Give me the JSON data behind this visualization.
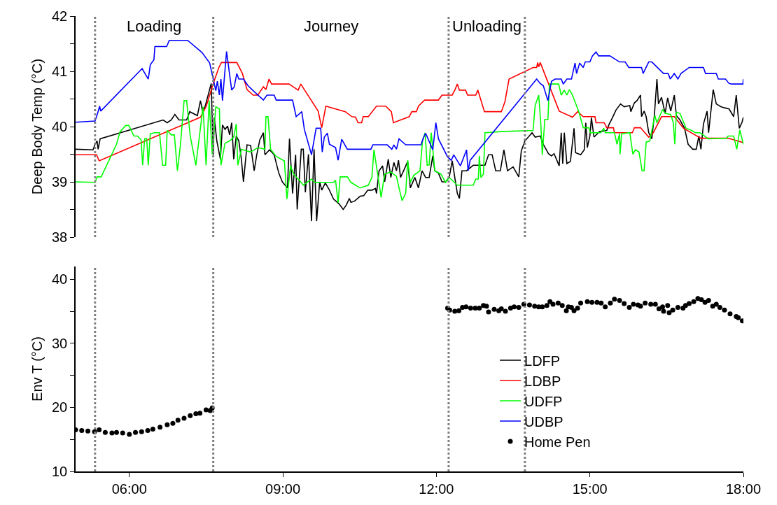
{
  "chart_data": [
    {
      "type": "line",
      "ylabel": "Deep Body Temp (°C)",
      "tick_labels": "y",
      "xlim": [
        4.95,
        18
      ],
      "ylim": [
        38,
        42
      ],
      "yticks": [
        38,
        {
          "value": 38.5,
          "label": null
        },
        39,
        {
          "value": 39.5,
          "label": null
        },
        40,
        {
          "value": 40.5,
          "label": null
        },
        41,
        {
          "value": 41.5,
          "label": null
        },
        42
      ],
      "marker": "none",
      "annotations": [
        "Loading",
        "Journey",
        "Unloading"
      ],
      "ref_lines": [
        {
          "axis": "x",
          "value": 5.33,
          "color": "#808080",
          "line_style": "dotted"
        },
        {
          "axis": "x",
          "value": 7.64,
          "color": "#808080",
          "line_style": "dotted"
        },
        {
          "axis": "x",
          "value": 12.24,
          "color": "#808080",
          "line_style": "dotted"
        },
        {
          "axis": "x",
          "value": 13.73,
          "color": "#808080",
          "line_style": "dotted"
        }
      ],
      "series": [
        {
          "name": "LDFP",
          "color": "#000000",
          "x": [
            4.95,
            5.29,
            5.33,
            5.37,
            5.39,
            5.43,
            6.66,
            6.74,
            6.82,
            6.89,
            6.97,
            7.12,
            7.18,
            7.33,
            7.39,
            7.43,
            7.48,
            7.6,
            7.64,
            7.66,
            7.71,
            7.78,
            7.82,
            7.87,
            7.92,
            7.96,
            8.0,
            8.04,
            8.09,
            8.14,
            8.19,
            8.23,
            8.3,
            8.37,
            8.44,
            8.49,
            8.55,
            8.62,
            8.65,
            8.74,
            8.83,
            8.92,
            8.99,
            9.09,
            9.13,
            9.19,
            9.25,
            9.28,
            9.36,
            9.4,
            9.44,
            9.5,
            9.56,
            9.61,
            9.66,
            9.72,
            9.76,
            9.83,
            9.9,
            9.99,
            10.1,
            10.18,
            10.24,
            10.3,
            10.33,
            10.4,
            10.51,
            10.58,
            10.66,
            10.74,
            10.81,
            10.83,
            10.88,
            10.95,
            10.99,
            11.06,
            11.11,
            11.17,
            11.22,
            11.26,
            11.3,
            11.36,
            11.44,
            11.49,
            11.58,
            11.65,
            11.72,
            11.79,
            11.86,
            11.93,
            11.97,
            12.04,
            12.11,
            12.18,
            12.25,
            12.31,
            12.36,
            12.41,
            12.45,
            12.5,
            12.59,
            12.72,
            12.82,
            12.95,
            13.02,
            13.09,
            13.16,
            13.25,
            13.32,
            13.39,
            13.5,
            13.61,
            13.66,
            13.73,
            13.87,
            13.93,
            14.03,
            14.09,
            14.19,
            14.25,
            14.3,
            14.4,
            14.44,
            14.47,
            14.5,
            14.55,
            14.62,
            14.69,
            14.72,
            14.82,
            14.89,
            14.92,
            14.95,
            15.0,
            15.03,
            15.08,
            15.19,
            15.33,
            15.37,
            15.44,
            15.51,
            15.6,
            15.67,
            15.78,
            15.8,
            15.87,
            15.92,
            15.99,
            16.01,
            16.06,
            16.1,
            16.15,
            16.21,
            16.26,
            16.31,
            16.34,
            16.4,
            16.47,
            16.52,
            16.58,
            16.65,
            16.69,
            16.76,
            16.85,
            16.92,
            17.01,
            17.08,
            17.13,
            17.17,
            17.22,
            17.29,
            17.32,
            17.41,
            17.47,
            17.56,
            17.63,
            17.72,
            17.81,
            17.86,
            17.92,
            17.97,
            18.0
          ],
          "values": [
            39.59,
            39.58,
            39.68,
            39.74,
            39.59,
            39.78,
            40.12,
            40.07,
            40.12,
            40.22,
            40.12,
            40.12,
            40.27,
            40.2,
            40.47,
            40.28,
            40.36,
            40.78,
            39.49,
            40.16,
            39.74,
            39.41,
            40.03,
            39.95,
            40.01,
            39.85,
            40.07,
            39.41,
            39.83,
            39.74,
            39.41,
            39.0,
            39.67,
            39.66,
            39.2,
            39.49,
            39.76,
            39.89,
            39.49,
            39.58,
            39.49,
            39.16,
            39.0,
            38.89,
            39.78,
            38.79,
            39.49,
            38.5,
            39.59,
            39.59,
            38.81,
            39.5,
            38.29,
            39.59,
            38.29,
            39.0,
            38.85,
            38.98,
            38.87,
            38.69,
            38.6,
            38.5,
            38.58,
            38.7,
            38.63,
            38.65,
            38.74,
            38.75,
            38.85,
            38.85,
            38.88,
            38.79,
            39.2,
            39.29,
            39.0,
            39.41,
            39.08,
            39.35,
            39.2,
            39.39,
            39.08,
            39.2,
            39.37,
            38.89,
            39.08,
            38.89,
            39.2,
            39.08,
            39.08,
            39.47,
            39.2,
            39.16,
            39.0,
            39.0,
            39.08,
            39.38,
            39.08,
            38.79,
            38.7,
            39.2,
            39.2,
            39.3,
            39.3,
            39.3,
            39.49,
            39.49,
            39.2,
            39.2,
            39.58,
            39.2,
            39.27,
            39.09,
            39.56,
            39.74,
            39.89,
            39.81,
            39.83,
            39.68,
            39.51,
            39.47,
            39.51,
            39.29,
            39.89,
            39.33,
            39.89,
            39.33,
            39.37,
            39.97,
            39.53,
            39.49,
            39.58,
            40.07,
            39.62,
            39.83,
            40.16,
            39.81,
            39.91,
            39.93,
            40.03,
            40.16,
            40.3,
            40.41,
            40.36,
            40.38,
            40.27,
            40.43,
            40.47,
            40.57,
            40.18,
            40.28,
            40.18,
            39.89,
            39.78,
            40.2,
            40.86,
            40.41,
            40.53,
            40.24,
            40.52,
            40.28,
            40.57,
            40.2,
            40.12,
            39.97,
            39.68,
            39.59,
            39.59,
            39.83,
            39.59,
            40.05,
            40.28,
            39.89,
            40.67,
            40.41,
            40.36,
            40.34,
            40.32,
            40.18,
            40.57,
            39.97,
            40.07,
            40.17
          ]
        },
        {
          "name": "LDBP",
          "color": "#ff0000",
          "x": [
            4.95,
            5.36,
            5.41,
            7.39,
            7.5,
            7.64,
            7.75,
            7.8,
            8.1,
            8.21,
            8.3,
            8.42,
            8.51,
            8.62,
            8.67,
            8.73,
            8.78,
            9.12,
            9.3,
            9.35,
            9.69,
            9.76,
            9.84,
            10.22,
            10.35,
            10.42,
            10.47,
            10.54,
            10.57,
            10.67,
            10.83,
            11.01,
            11.12,
            11.16,
            11.47,
            11.52,
            11.61,
            11.65,
            11.77,
            12.04,
            12.11,
            12.31,
            12.36,
            12.41,
            12.45,
            12.57,
            12.61,
            12.77,
            12.81,
            12.94,
            13.27,
            13.34,
            13.42,
            13.89,
            13.96,
            13.98,
            14.0,
            14.03,
            14.4,
            14.66,
            14.76,
            14.87,
            15.1,
            15.12,
            15.28,
            15.33,
            15.46,
            15.48,
            15.83,
            15.87,
            15.99,
            16.15,
            16.24,
            16.4,
            16.65,
            16.83,
            17.17,
            17.7,
            18.0
          ],
          "values": [
            39.49,
            39.49,
            39.38,
            40.17,
            40.36,
            40.78,
            41.07,
            41.16,
            41.16,
            40.96,
            40.67,
            40.57,
            40.57,
            40.72,
            40.67,
            40.86,
            40.77,
            40.77,
            40.66,
            40.77,
            40.28,
            39.98,
            40.37,
            40.27,
            40.18,
            40.17,
            40.07,
            40.07,
            40.18,
            40.18,
            40.37,
            40.37,
            40.27,
            40.07,
            40.18,
            40.27,
            40.27,
            40.37,
            40.48,
            40.48,
            40.57,
            40.57,
            40.66,
            40.77,
            40.66,
            40.66,
            40.57,
            40.57,
            40.66,
            40.27,
            40.27,
            40.45,
            40.86,
            41.07,
            41.07,
            41.16,
            41.08,
            41.16,
            40.28,
            40.17,
            40.27,
            40.18,
            40.18,
            40.07,
            40.07,
            39.98,
            39.98,
            39.89,
            39.89,
            39.98,
            39.98,
            39.81,
            39.89,
            40.18,
            40.18,
            39.97,
            39.79,
            39.79,
            39.71
          ]
        },
        {
          "name": "UDFP",
          "color": "#00ff00",
          "x": [
            4.95,
            5.33,
            5.37,
            5.45,
            5.75,
            5.82,
            5.93,
            5.99,
            6.09,
            6.16,
            6.23,
            6.26,
            6.3,
            6.34,
            6.37,
            6.41,
            6.49,
            6.59,
            6.65,
            6.71,
            6.74,
            6.82,
            6.88,
            6.94,
            7.0,
            7.07,
            7.12,
            7.19,
            7.3,
            7.44,
            7.5,
            7.56,
            7.62,
            7.69,
            7.76,
            7.79,
            7.87,
            7.96,
            8.04,
            8.09,
            8.12,
            8.19,
            8.37,
            8.51,
            8.65,
            8.67,
            8.71,
            8.76,
            8.87,
            9.03,
            9.08,
            9.15,
            9.21,
            9.33,
            9.4,
            9.56,
            9.62,
            9.99,
            10.03,
            10.08,
            10.12,
            10.26,
            10.33,
            10.51,
            10.67,
            10.74,
            10.78,
            10.85,
            10.92,
            10.99,
            11.11,
            11.22,
            11.27,
            11.33,
            11.4,
            11.44,
            11.49,
            11.56,
            11.68,
            11.73,
            11.78,
            11.82,
            11.86,
            11.9,
            11.97,
            12.09,
            12.18,
            12.25,
            12.41,
            12.72,
            12.77,
            12.82,
            12.84,
            12.87,
            12.92,
            12.95,
            13.27,
            13.89,
            13.93,
            14.0,
            14.04,
            14.07,
            14.12,
            14.18,
            14.21,
            14.39,
            14.44,
            14.5,
            14.55,
            14.6,
            14.66,
            14.78,
            14.87,
            14.98,
            15.01,
            15.21,
            15.27,
            15.3,
            15.48,
            15.53,
            15.58,
            15.59,
            15.62,
            15.78,
            15.84,
            15.89,
            15.96,
            16.02,
            16.06,
            16.1,
            16.17,
            16.27,
            16.31,
            16.42,
            16.47,
            16.58,
            16.63,
            16.66,
            16.69,
            16.76,
            16.88,
            16.99,
            17.06,
            17.15,
            17.24,
            17.31,
            17.67,
            17.7,
            17.81,
            17.87,
            17.93,
            18.0
          ],
          "values": [
            39.0,
            38.99,
            39.09,
            39.09,
            39.68,
            39.91,
            40.02,
            40.02,
            39.83,
            39.83,
            39.76,
            39.3,
            39.78,
            39.78,
            39.3,
            39.87,
            39.89,
            39.89,
            39.3,
            39.3,
            39.93,
            39.85,
            39.85,
            39.2,
            39.68,
            40.47,
            40.47,
            39.83,
            39.3,
            40.36,
            39.3,
            40.47,
            39.5,
            40.36,
            40.32,
            39.3,
            39.7,
            39.74,
            39.81,
            40.05,
            39.3,
            39.59,
            39.54,
            39.62,
            39.59,
            40.18,
            40.18,
            39.59,
            39.46,
            39.38,
            38.69,
            39.29,
            39.14,
            39.02,
            38.94,
            39.05,
            38.99,
            38.99,
            39.03,
            38.62,
            39.09,
            39.09,
            38.99,
            38.89,
            38.94,
            39.08,
            39.58,
            39.16,
            38.72,
            39.14,
            39.18,
            39.1,
            38.89,
            38.66,
            38.79,
            39.39,
            38.99,
            39.12,
            39.2,
            39.75,
            39.89,
            39.3,
            39.31,
            39.89,
            39.2,
            39.14,
            38.99,
            39.08,
            38.94,
            38.94,
            39.05,
            39.05,
            39.47,
            39.08,
            39.14,
            39.89,
            39.91,
            39.93,
            40.38,
            40.57,
            40.07,
            39.49,
            40.13,
            40.13,
            40.77,
            40.77,
            40.57,
            40.66,
            40.57,
            40.67,
            40.57,
            40.28,
            39.98,
            39.98,
            39.89,
            39.89,
            39.97,
            39.89,
            39.89,
            39.68,
            39.87,
            39.5,
            39.87,
            39.89,
            39.5,
            39.58,
            39.54,
            39.2,
            39.2,
            39.72,
            39.74,
            40.2,
            40.07,
            40.31,
            40.24,
            40.22,
            40.07,
            39.68,
            40.26,
            40.24,
            39.97,
            39.93,
            39.89,
            39.89,
            39.83,
            39.78,
            39.79,
            39.83,
            39.83,
            39.59,
            39.94,
            39.68
          ]
        },
        {
          "name": "UDBP",
          "color": "#0000ff",
          "x": [
            4.95,
            5.33,
            5.38,
            5.42,
            5.44,
            6.25,
            6.37,
            6.41,
            6.48,
            6.5,
            6.73,
            6.78,
            7.14,
            7.42,
            7.57,
            7.64,
            7.69,
            7.72,
            7.76,
            7.79,
            7.82,
            7.9,
            8.0,
            8.05,
            8.1,
            8.14,
            8.23,
            8.32,
            8.42,
            8.62,
            8.69,
            8.83,
            8.87,
            9.19,
            9.26,
            9.37,
            9.42,
            9.56,
            9.65,
            9.74,
            9.77,
            9.81,
            9.87,
            9.91,
            10.03,
            10.08,
            10.15,
            10.26,
            10.72,
            10.76,
            11.04,
            11.13,
            11.17,
            11.22,
            11.27,
            11.4,
            11.7,
            11.74,
            11.79,
            11.93,
            11.99,
            12.04,
            12.22,
            12.29,
            12.34,
            12.47,
            12.59,
            12.62,
            12.66,
            13.96,
            14.03,
            14.09,
            14.18,
            14.25,
            14.32,
            14.44,
            14.48,
            14.55,
            14.64,
            14.71,
            14.74,
            14.8,
            14.87,
            14.91,
            15.0,
            15.05,
            15.12,
            15.17,
            15.39,
            15.58,
            15.69,
            15.76,
            16.01,
            16.04,
            16.15,
            16.21,
            16.44,
            16.53,
            16.57,
            16.65,
            16.72,
            16.78,
            16.94,
            17.22,
            17.26,
            17.47,
            17.51,
            17.65,
            17.72,
            17.77,
            17.99,
            18.0
          ],
          "values": [
            40.08,
            40.1,
            40.24,
            40.37,
            40.28,
            41.05,
            40.86,
            41.12,
            41.21,
            41.45,
            41.45,
            41.56,
            41.56,
            41.34,
            41.15,
            40.86,
            40.65,
            40.82,
            40.57,
            40.86,
            40.47,
            41.36,
            40.66,
            40.72,
            40.96,
            40.86,
            40.86,
            40.74,
            40.65,
            40.48,
            40.57,
            40.57,
            40.48,
            40.48,
            40.18,
            40.27,
            39.95,
            39.49,
            39.97,
            39.97,
            39.54,
            39.81,
            39.88,
            39.68,
            39.62,
            39.39,
            39.77,
            39.59,
            39.59,
            39.67,
            39.67,
            39.59,
            39.67,
            39.59,
            39.78,
            39.67,
            39.67,
            39.78,
            39.88,
            39.58,
            40.07,
            39.78,
            39.45,
            39.39,
            39.49,
            39.29,
            39.58,
            39.2,
            39.39,
            40.86,
            40.78,
            40.74,
            40.47,
            40.82,
            40.86,
            40.86,
            40.77,
            40.86,
            40.86,
            41.15,
            40.96,
            41.15,
            41.07,
            41.17,
            41.17,
            41.28,
            41.35,
            41.28,
            41.28,
            41.17,
            41.17,
            41.07,
            41.07,
            40.96,
            41.17,
            41.17,
            40.96,
            40.96,
            40.86,
            40.96,
            40.86,
            40.96,
            41.07,
            41.07,
            40.96,
            40.96,
            40.86,
            40.86,
            40.78,
            40.77,
            40.77,
            40.86
          ]
        }
      ]
    },
    {
      "type": "scatter",
      "ylabel": "Env T (°C)",
      "marker": "circle",
      "legend": "bottom right",
      "xlim": [
        4.95,
        18
      ],
      "xticks": [
        {
          "value": 6,
          "label": "06:00"
        },
        {
          "value": 9,
          "label": "09:00"
        },
        {
          "value": 12,
          "label": "12:00"
        },
        {
          "value": 15,
          "label": "15:00"
        },
        {
          "value": 18,
          "label": "18:00"
        }
      ],
      "ylim": [
        10,
        42
      ],
      "yticks": [
        10,
        {
          "value": 15,
          "label": null
        },
        20,
        {
          "value": 25,
          "label": null
        },
        30,
        {
          "value": 35,
          "label": null
        },
        40
      ],
      "ref_lines": [
        {
          "axis": "x",
          "value": 5.33,
          "color": "#808080",
          "line_style": "dotted"
        },
        {
          "axis": "x",
          "value": 7.64,
          "color": "#808080",
          "line_style": "dotted"
        },
        {
          "axis": "x",
          "value": 12.24,
          "color": "#808080",
          "line_style": "dotted"
        },
        {
          "axis": "x",
          "value": 13.73,
          "color": "#808080",
          "line_style": "dotted"
        }
      ],
      "series": [
        {
          "name": "Home Pen",
          "color": "#000000",
          "x": [
            4.95,
            5.07,
            5.19,
            5.32,
            5.41,
            5.53,
            5.66,
            5.75,
            5.87,
            6.0,
            6.12,
            6.24,
            6.36,
            6.46,
            6.6,
            6.74,
            6.85,
            6.95,
            7.07,
            7.19,
            7.3,
            7.38,
            7.5,
            7.58,
            7.62,
            12.22,
            12.26,
            12.36,
            12.44,
            12.51,
            12.58,
            12.67,
            12.76,
            12.84,
            12.92,
            12.98,
            13.02,
            13.13,
            13.22,
            13.27,
            13.35,
            13.45,
            13.52,
            13.61,
            13.71,
            13.82,
            13.92,
            14.0,
            14.07,
            14.16,
            14.22,
            14.28,
            14.38,
            14.46,
            14.54,
            14.58,
            14.64,
            14.69,
            14.76,
            14.82,
            14.95,
            15.04,
            15.14,
            15.22,
            15.3,
            15.4,
            15.48,
            15.58,
            15.67,
            15.77,
            15.85,
            15.94,
            15.99,
            16.08,
            16.19,
            16.28,
            16.35,
            16.42,
            16.44,
            16.52,
            16.55,
            16.62,
            16.72,
            16.82,
            16.87,
            16.94,
            17.03,
            17.11,
            17.18,
            17.25,
            17.32,
            17.4,
            17.47,
            17.54,
            17.63,
            17.74,
            17.86,
            17.9,
            17.98
          ],
          "values": [
            16.5,
            16.4,
            16.3,
            16.2,
            16.5,
            16.1,
            16.0,
            16.1,
            16.0,
            15.8,
            16.1,
            16.2,
            16.4,
            16.6,
            16.9,
            17.3,
            17.5,
            18.0,
            18.3,
            18.7,
            19.0,
            19.1,
            19.6,
            19.5,
            19.9,
            35.5,
            35.2,
            35.0,
            35.1,
            35.6,
            35.7,
            35.5,
            35.5,
            35.5,
            35.9,
            35.8,
            34.9,
            35.3,
            35.1,
            35.4,
            35.0,
            35.5,
            35.7,
            35.6,
            36.1,
            36.0,
            35.8,
            35.7,
            35.7,
            35.9,
            36.5,
            36.1,
            36.3,
            35.9,
            35.1,
            35.7,
            35.6,
            35.1,
            35.5,
            36.3,
            36.5,
            36.4,
            36.4,
            36.3,
            35.7,
            36.3,
            36.9,
            36.7,
            36.2,
            35.6,
            36.1,
            36.0,
            35.8,
            36.3,
            36.1,
            36.1,
            35.4,
            35.7,
            35.0,
            35.9,
            34.8,
            35.2,
            35.6,
            35.5,
            35.9,
            36.2,
            36.5,
            37.0,
            36.8,
            36.4,
            36.7,
            35.8,
            36.1,
            35.6,
            35.2,
            34.6,
            34.2,
            34.0,
            33.5
          ]
        }
      ]
    }
  ]
}
